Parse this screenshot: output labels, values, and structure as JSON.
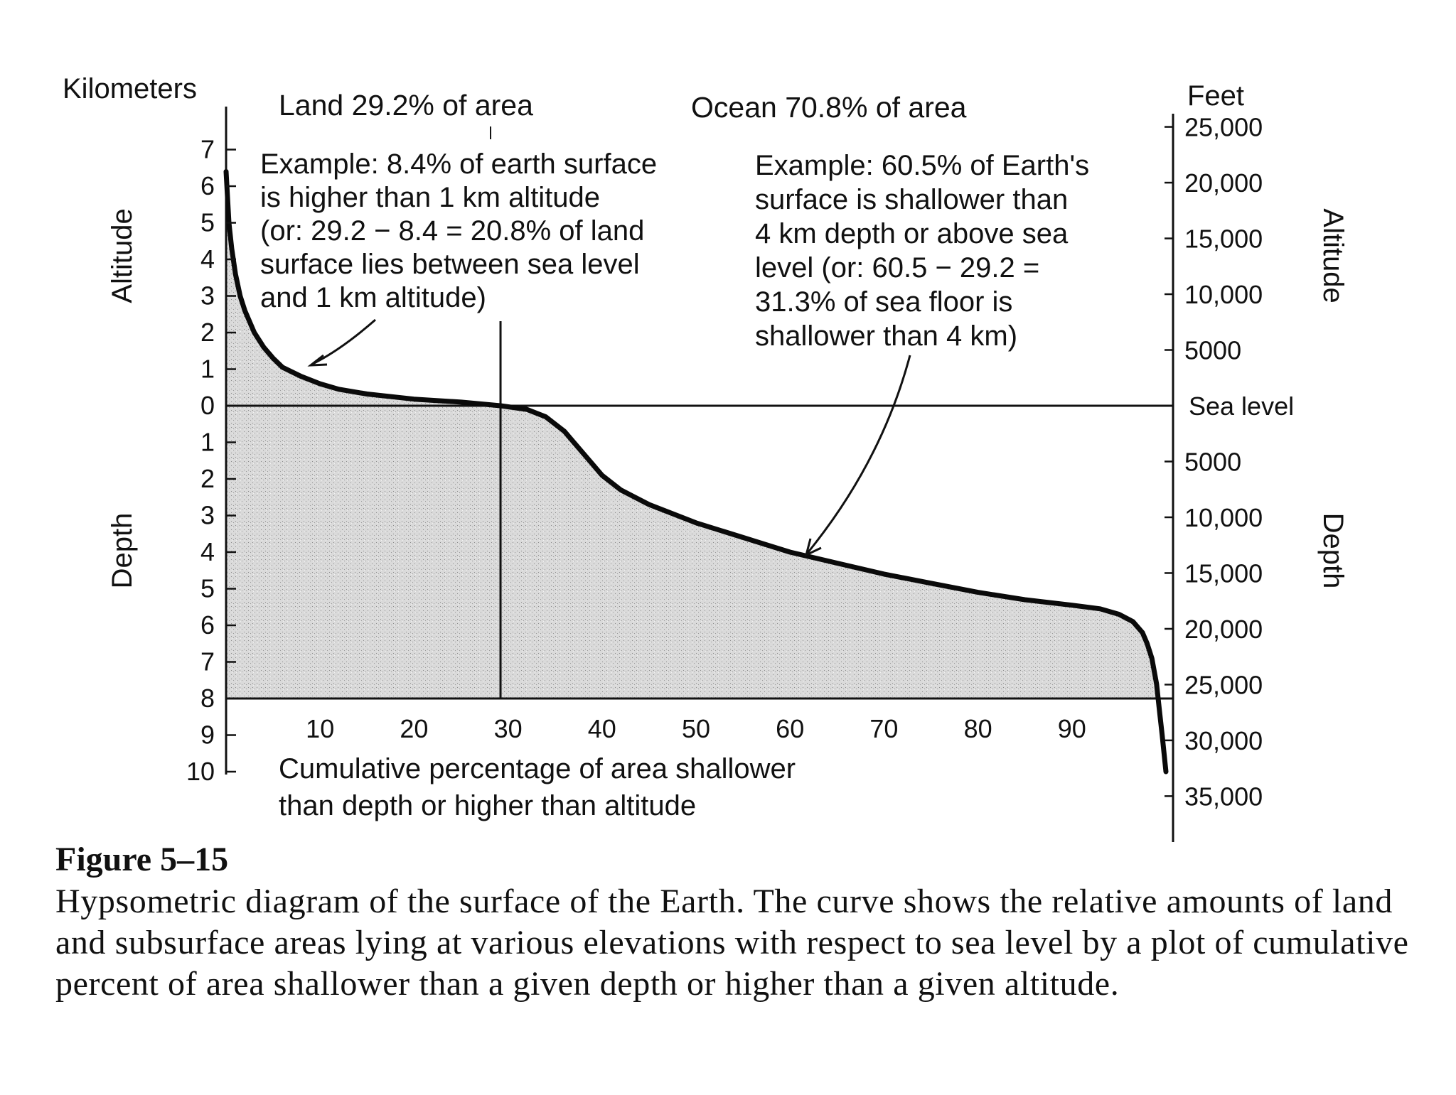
{
  "chart_data": {
    "type": "area",
    "left_axis_label": "Kilometers",
    "right_axis_label": "Feet",
    "left_axis_titles": {
      "upper": "Altitude",
      "lower": "Depth"
    },
    "right_axis_titles": {
      "upper": "Altitude",
      "lower": "Depth"
    },
    "left_ticks": [
      {
        "label": "7",
        "km": 7
      },
      {
        "label": "6",
        "km": 6
      },
      {
        "label": "5",
        "km": 5
      },
      {
        "label": "4",
        "km": 4
      },
      {
        "label": "3",
        "km": 3
      },
      {
        "label": "2",
        "km": 2
      },
      {
        "label": "1",
        "km": 1
      },
      {
        "label": "0",
        "km": 0
      },
      {
        "label": "1",
        "km": -1
      },
      {
        "label": "2",
        "km": -2
      },
      {
        "label": "3",
        "km": -3
      },
      {
        "label": "4",
        "km": -4
      },
      {
        "label": "5",
        "km": -5
      },
      {
        "label": "6",
        "km": -6
      },
      {
        "label": "7",
        "km": -7
      },
      {
        "label": "8",
        "km": -8
      },
      {
        "label": "9",
        "km": -9
      },
      {
        "label": "10",
        "km": -10
      }
    ],
    "right_ticks": [
      {
        "label": "25,000",
        "feet": 25000
      },
      {
        "label": "20,000",
        "feet": 20000
      },
      {
        "label": "15,000",
        "feet": 15000
      },
      {
        "label": "10,000",
        "feet": 10000
      },
      {
        "label": "5000",
        "feet": 5000
      },
      {
        "label": "Sea level",
        "feet": 0
      },
      {
        "label": "5000",
        "feet": -5000
      },
      {
        "label": "10,000",
        "feet": -10000
      },
      {
        "label": "15,000",
        "feet": -15000
      },
      {
        "label": "20,000",
        "feet": -20000
      },
      {
        "label": "25,000",
        "feet": -25000
      },
      {
        "label": "30,000",
        "feet": -30000
      },
      {
        "label": "35,000",
        "feet": -35000
      }
    ],
    "x_ticks": [
      {
        "label": "10",
        "pct": 10
      },
      {
        "label": "20",
        "pct": 20
      },
      {
        "label": "30",
        "pct": 30
      },
      {
        "label": "40",
        "pct": 40
      },
      {
        "label": "50",
        "pct": 50
      },
      {
        "label": "60",
        "pct": 60
      },
      {
        "label": "70",
        "pct": 70
      },
      {
        "label": "80",
        "pct": 80
      },
      {
        "label": "90",
        "pct": 90
      }
    ],
    "x_axis_label": [
      "Cumulative percentage of area shallower",
      "than depth or higher than altitude"
    ],
    "region_labels": {
      "land": "Land 29.2% of area",
      "ocean": "Ocean 70.8% of area"
    },
    "land_fraction_pct": 29.2,
    "bottom_line_km": -8,
    "series": [
      {
        "x": [
          0,
          0.3,
          0.6,
          1,
          1.5,
          2,
          3,
          4,
          5,
          6,
          8,
          10,
          12,
          15,
          20,
          25,
          29.2,
          32,
          34,
          36,
          37,
          38,
          39,
          40,
          42,
          45,
          50,
          55,
          60,
          65,
          70,
          75,
          80,
          85,
          90,
          93,
          95,
          96.5,
          97.5,
          98,
          98.5,
          99,
          99.3,
          99.6,
          100
        ],
        "y": [
          6.4,
          5.0,
          4.3,
          3.6,
          3.0,
          2.6,
          2.0,
          1.6,
          1.3,
          1.05,
          0.8,
          0.6,
          0.45,
          0.32,
          0.18,
          0.1,
          0.0,
          -0.1,
          -0.3,
          -0.7,
          -1.0,
          -1.3,
          -1.6,
          -1.9,
          -2.3,
          -2.7,
          -3.2,
          -3.6,
          -4.0,
          -4.3,
          -4.6,
          -4.85,
          -5.1,
          -5.3,
          -5.45,
          -5.55,
          -5.7,
          -5.9,
          -6.2,
          -6.5,
          -6.9,
          -7.6,
          -8.3,
          -9.0,
          -10.0
        ]
      }
    ],
    "annotations": {
      "land_example": [
        "Example: 8.4% of earth surface",
        "is higher than 1 km altitude",
        "(or: 29.2 − 8.4 = 20.8% of land",
        "surface lies between sea level",
        "and 1 km altitude)"
      ],
      "ocean_example": [
        "Example: 60.5% of Earth's",
        "surface is shallower than",
        "4 km depth or above sea",
        "level (or: 60.5 − 29.2 =",
        "31.3% of  sea floor is",
        "shallower than 4 km)"
      ]
    }
  },
  "caption": {
    "heading": "Figure 5–15",
    "body": "Hypsometric diagram of the surface of the Earth. The curve shows the relative amounts of land and subsurface areas lying at various elevations with respect to sea level by a plot of cumulative percent of area shallower than a given depth or higher than a given altitude."
  }
}
